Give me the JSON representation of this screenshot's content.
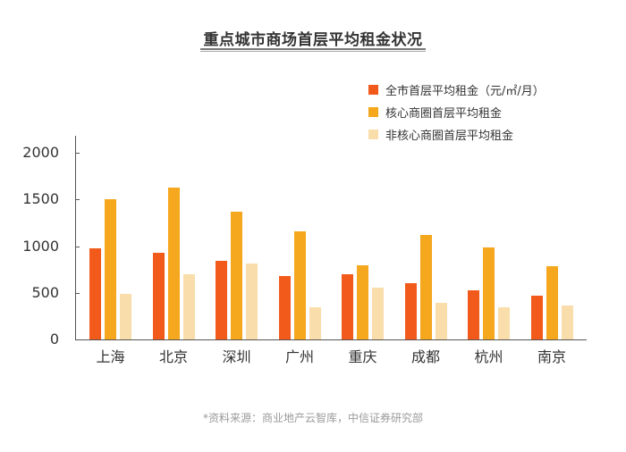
{
  "title": "重点城市商场首层平均租金状况",
  "source": "*资料来源：商业地产云智库，中信证券研究部",
  "colors": {
    "series0": "#f25a1c",
    "series1": "#f5a71d",
    "series2": "#f9ddaa",
    "axis": "#555555"
  },
  "legend": [
    {
      "label": "全市首层平均租金（元/㎡/月）",
      "color": "#f25a1c"
    },
    {
      "label": "核心商圈首层平均租金",
      "color": "#f5a71d"
    },
    {
      "label": "非核心商圈首层平均租金",
      "color": "#f9ddaa"
    }
  ],
  "y_ticks": [
    "0",
    "500",
    "1000",
    "1500",
    "2000"
  ],
  "chart_data": {
    "type": "bar",
    "title": "重点城市商场首层平均租金状况",
    "xlabel": "",
    "ylabel": "",
    "ylim": [
      0,
      2000
    ],
    "yticks": [
      0,
      500,
      1000,
      1500,
      2000
    ],
    "grid": false,
    "legend_position": "top-right",
    "categories": [
      "上海",
      "北京",
      "深圳",
      "广州",
      "重庆",
      "成都",
      "杭州",
      "南京"
    ],
    "series": [
      {
        "name": "全市首层平均租金（元/㎡/月）",
        "values": [
          975,
          930,
          840,
          680,
          700,
          600,
          530,
          470
        ]
      },
      {
        "name": "核心商圈首层平均租金",
        "values": [
          1500,
          1630,
          1370,
          1160,
          790,
          1120,
          990,
          780
        ]
      },
      {
        "name": "非核心商圈首层平均租金",
        "values": [
          490,
          700,
          815,
          340,
          555,
          395,
          340,
          360
        ]
      }
    ],
    "annotations": [
      "*资料来源：商业地产云智库，中信证券研究部"
    ]
  }
}
